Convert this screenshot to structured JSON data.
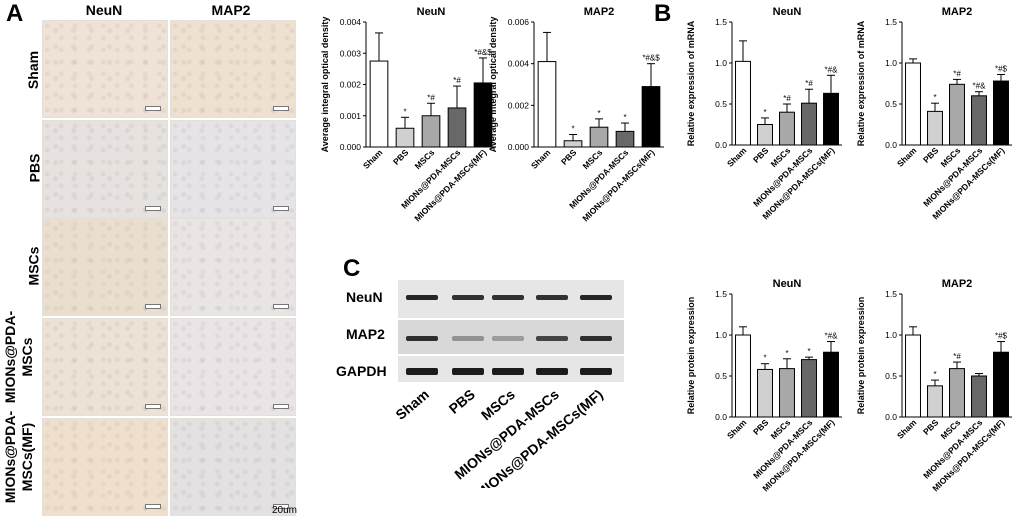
{
  "panelA": {
    "letter": "A",
    "col_headers": [
      "NeuN",
      "MAP2"
    ],
    "row_labels": [
      "Sham",
      "PBS",
      "MSCs",
      "MIONs@PDA-\nMSCs",
      "MIONs@PDA-\nMSCs(MF)"
    ],
    "scale_label": "20um",
    "tile_colors": [
      [
        "#efe2d6",
        "#efe1cf"
      ],
      [
        "#e5e2e0",
        "#e6e4e8"
      ],
      [
        "#eadfce",
        "#e9e5e4"
      ],
      [
        "#ece2d6",
        "#e9e5e7"
      ],
      [
        "#efe0cd",
        "#e3e1e2"
      ]
    ]
  },
  "panelB": {
    "letter": "B"
  },
  "panelC": {
    "letter": "C",
    "blot_rows": [
      "NeuN",
      "MAP2",
      "GAPDH"
    ],
    "lanes": [
      "Sham",
      "PBS",
      "MSCs",
      "MIONs@PDA-MSCs",
      "MIONs@PDA-MSCs(MF)"
    ]
  },
  "colors": {
    "Sham": "#ffffff",
    "PBS": "#d0d0d0",
    "MSCs": "#a8a8a8",
    "MIONs@PDA-MSCs": "#686868",
    "MIONs@PDA-MSCs(MF)": "#000000"
  },
  "chart_data": [
    {
      "id": "a-neun",
      "type": "bar",
      "title": "NeuN",
      "ylabel": "Average integral optical density",
      "categories": [
        "Sham",
        "PBS",
        "MSCs",
        "MIONs@PDA-MSCs",
        "MIONs@PDA-MSCs(MF)"
      ],
      "values": [
        0.00275,
        0.0006,
        0.001,
        0.00125,
        0.00205
      ],
      "errors": [
        0.0009,
        0.00035,
        0.0004,
        0.0007,
        0.0008
      ],
      "annotations": [
        "",
        "*",
        "*#",
        "*#",
        "*#&$"
      ],
      "ylim": [
        0,
        0.004
      ],
      "yticks": [
        "0.000",
        "0.001",
        "0.002",
        "0.003",
        "0.004"
      ]
    },
    {
      "id": "a-map2",
      "type": "bar",
      "title": "MAP2",
      "ylabel": "Average integral optical density",
      "categories": [
        "Sham",
        "PBS",
        "MSCs",
        "MIONs@PDA-MSCs",
        "MIONs@PDA-MSCs(MF)"
      ],
      "values": [
        0.0041,
        0.0003,
        0.00095,
        0.00075,
        0.0029
      ],
      "errors": [
        0.0014,
        0.0003,
        0.0004,
        0.0004,
        0.0011
      ],
      "annotations": [
        "",
        "*",
        "*",
        "*",
        "*#&$"
      ],
      "ylim": [
        0,
        0.006
      ],
      "yticks": [
        "0.000",
        "0.002",
        "0.004",
        "0.006"
      ]
    },
    {
      "id": "b-neun",
      "type": "bar",
      "title": "NeuN",
      "ylabel": "Relative expression of mRNA",
      "categories": [
        "Sham",
        "PBS",
        "MSCs",
        "MIONs@PDA-MSCs",
        "MIONs@PDA-MSCs(MF)"
      ],
      "values": [
        1.02,
        0.25,
        0.4,
        0.51,
        0.63
      ],
      "errors": [
        0.25,
        0.08,
        0.1,
        0.17,
        0.22
      ],
      "annotations": [
        "",
        "*",
        "*#",
        "*#",
        "*#&"
      ],
      "ylim": [
        0,
        1.5
      ],
      "yticks": [
        "0.0",
        "0.5",
        "1.0",
        "1.5"
      ]
    },
    {
      "id": "b-map2",
      "type": "bar",
      "title": "MAP2",
      "ylabel": "Relative expression of mRNA",
      "categories": [
        "Sham",
        "PBS",
        "MSCs",
        "MIONs@PDA-MSCs",
        "MIONs@PDA-MSCs(MF)"
      ],
      "values": [
        1.0,
        0.41,
        0.74,
        0.6,
        0.78
      ],
      "errors": [
        0.05,
        0.1,
        0.06,
        0.05,
        0.08
      ],
      "annotations": [
        "",
        "*",
        "*#",
        "*#&",
        "*#$"
      ],
      "ylim": [
        0,
        1.5
      ],
      "yticks": [
        "0.0",
        "0.5",
        "1.0",
        "1.5"
      ]
    },
    {
      "id": "c-neun",
      "type": "bar",
      "title": "NeuN",
      "ylabel": "Relative protein expression",
      "categories": [
        "Sham",
        "PBS",
        "MSCs",
        "MIONs@PDA-MSCs",
        "MIONs@PDA-MSCs(MF)"
      ],
      "values": [
        1.0,
        0.58,
        0.59,
        0.7,
        0.79
      ],
      "errors": [
        0.1,
        0.07,
        0.12,
        0.03,
        0.13
      ],
      "annotations": [
        "",
        "*",
        "*",
        "*",
        "*#&"
      ],
      "ylim": [
        0,
        1.5
      ],
      "yticks": [
        "0.0",
        "0.5",
        "1.0",
        "1.5"
      ]
    },
    {
      "id": "c-map2",
      "type": "bar",
      "title": "MAP2",
      "ylabel": "Relative protein expression",
      "categories": [
        "Sham",
        "PBS",
        "MSCs",
        "MIONs@PDA-MSCs",
        "MIONs@PDA-MSCs(MF)"
      ],
      "values": [
        1.0,
        0.38,
        0.59,
        0.5,
        0.79
      ],
      "errors": [
        0.1,
        0.07,
        0.08,
        0.03,
        0.13
      ],
      "annotations": [
        "",
        "*",
        "*#",
        "",
        "*#$"
      ],
      "ylim": [
        0,
        1.5
      ],
      "yticks": [
        "0.0",
        "0.5",
        "1.0",
        "1.5"
      ]
    }
  ]
}
